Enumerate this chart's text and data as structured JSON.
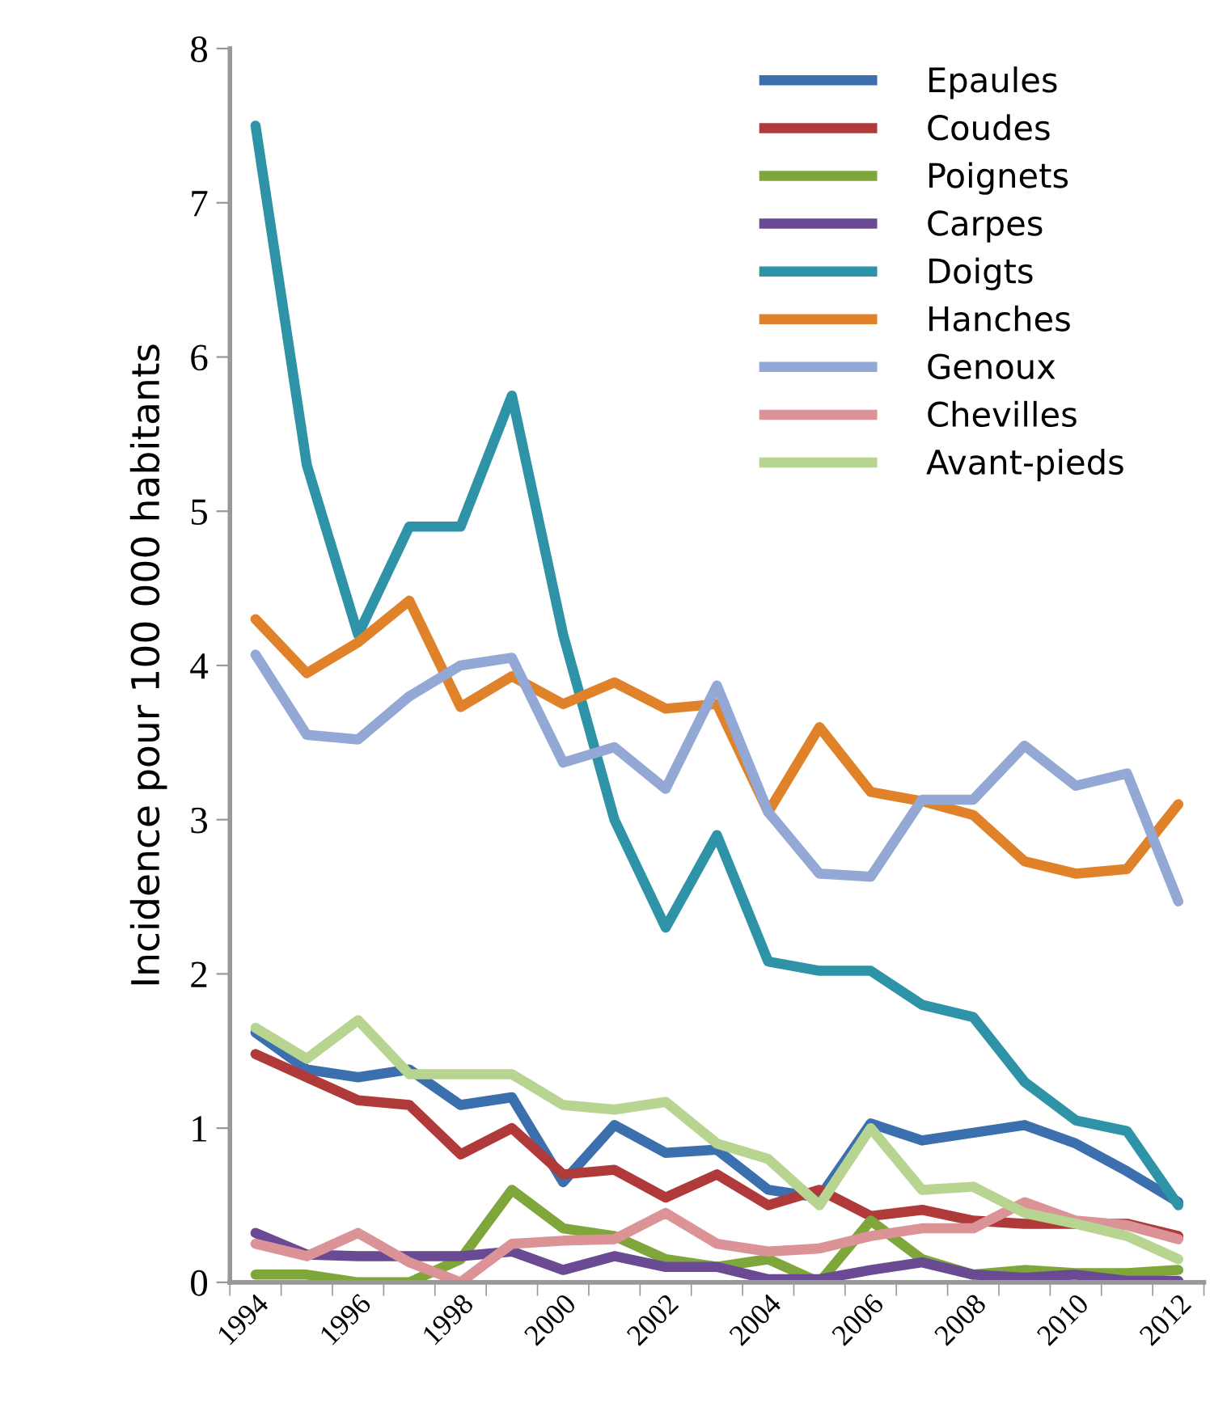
{
  "chart_data": {
    "type": "line",
    "ylabel": "Incidence pour 100 000 habitants",
    "categories": [
      "1994",
      null,
      "1996",
      null,
      "1998",
      null,
      "2000",
      null,
      "2002",
      null,
      "2004",
      null,
      "2006",
      null,
      "2008",
      null,
      "2010",
      null,
      "2012"
    ],
    "ylim": [
      0,
      8
    ],
    "yticks": [
      0,
      1,
      2,
      3,
      4,
      5,
      6,
      7,
      8
    ],
    "grid": false,
    "legend": "top right",
    "marker": "none",
    "line_style": "solid",
    "series": [
      {
        "name": "Epaules",
        "color": "#3c6fad",
        "values": [
          1.62,
          1.38,
          1.33,
          1.38,
          1.15,
          1.2,
          0.65,
          1.02,
          0.84,
          0.86,
          0.6,
          0.55,
          1.03,
          0.92,
          0.97,
          1.02,
          0.9,
          0.72,
          0.52
        ]
      },
      {
        "name": "Coudes",
        "color": "#b03a3a",
        "values": [
          1.48,
          1.33,
          1.18,
          1.15,
          0.83,
          1.0,
          0.7,
          0.73,
          0.55,
          0.7,
          0.5,
          0.6,
          0.43,
          0.47,
          0.4,
          0.38,
          0.38,
          0.38,
          0.3
        ]
      },
      {
        "name": "Poignets",
        "color": "#7fa63a",
        "values": [
          0.05,
          0.05,
          0.0,
          0.0,
          0.15,
          0.6,
          0.35,
          0.3,
          0.15,
          0.1,
          0.15,
          0.0,
          0.4,
          0.15,
          0.05,
          0.08,
          0.06,
          0.06,
          0.08
        ]
      },
      {
        "name": "Carpes",
        "color": "#6a4a93",
        "values": [
          0.32,
          0.18,
          0.17,
          0.17,
          0.17,
          0.2,
          0.08,
          0.17,
          0.1,
          0.1,
          0.02,
          0.02,
          0.08,
          0.13,
          0.05,
          0.03,
          0.05,
          0.01,
          0.01
        ]
      },
      {
        "name": "Doigts",
        "color": "#2e93a6",
        "values": [
          7.5,
          5.3,
          4.2,
          4.9,
          4.9,
          5.75,
          4.2,
          3.0,
          2.3,
          2.9,
          2.08,
          2.02,
          2.02,
          1.8,
          1.72,
          1.3,
          1.05,
          0.98,
          0.5
        ]
      },
      {
        "name": "Hanches",
        "color": "#e0822a",
        "values": [
          4.3,
          3.95,
          4.15,
          4.42,
          3.73,
          3.93,
          3.75,
          3.89,
          3.72,
          3.75,
          3.05,
          3.6,
          3.18,
          3.12,
          3.03,
          2.73,
          2.65,
          2.68,
          3.1
        ]
      },
      {
        "name": "Genoux",
        "color": "#93a8d4",
        "values": [
          4.07,
          3.55,
          3.52,
          3.8,
          4.0,
          4.05,
          3.37,
          3.47,
          3.2,
          3.87,
          3.05,
          2.65,
          2.63,
          3.13,
          3.13,
          3.48,
          3.22,
          3.3,
          2.47
        ]
      },
      {
        "name": "Chevilles",
        "color": "#dc9397",
        "values": [
          0.25,
          0.17,
          0.32,
          0.13,
          0.0,
          0.25,
          0.27,
          0.28,
          0.45,
          0.25,
          0.2,
          0.22,
          0.3,
          0.35,
          0.35,
          0.52,
          0.4,
          0.37,
          0.28
        ]
      },
      {
        "name": "Avant-pieds",
        "color": "#b8d491",
        "values": [
          1.65,
          1.45,
          1.7,
          1.35,
          1.35,
          1.35,
          1.15,
          1.12,
          1.17,
          0.9,
          0.8,
          0.5,
          1.0,
          0.6,
          0.62,
          0.45,
          0.38,
          0.3,
          0.15
        ]
      }
    ]
  }
}
